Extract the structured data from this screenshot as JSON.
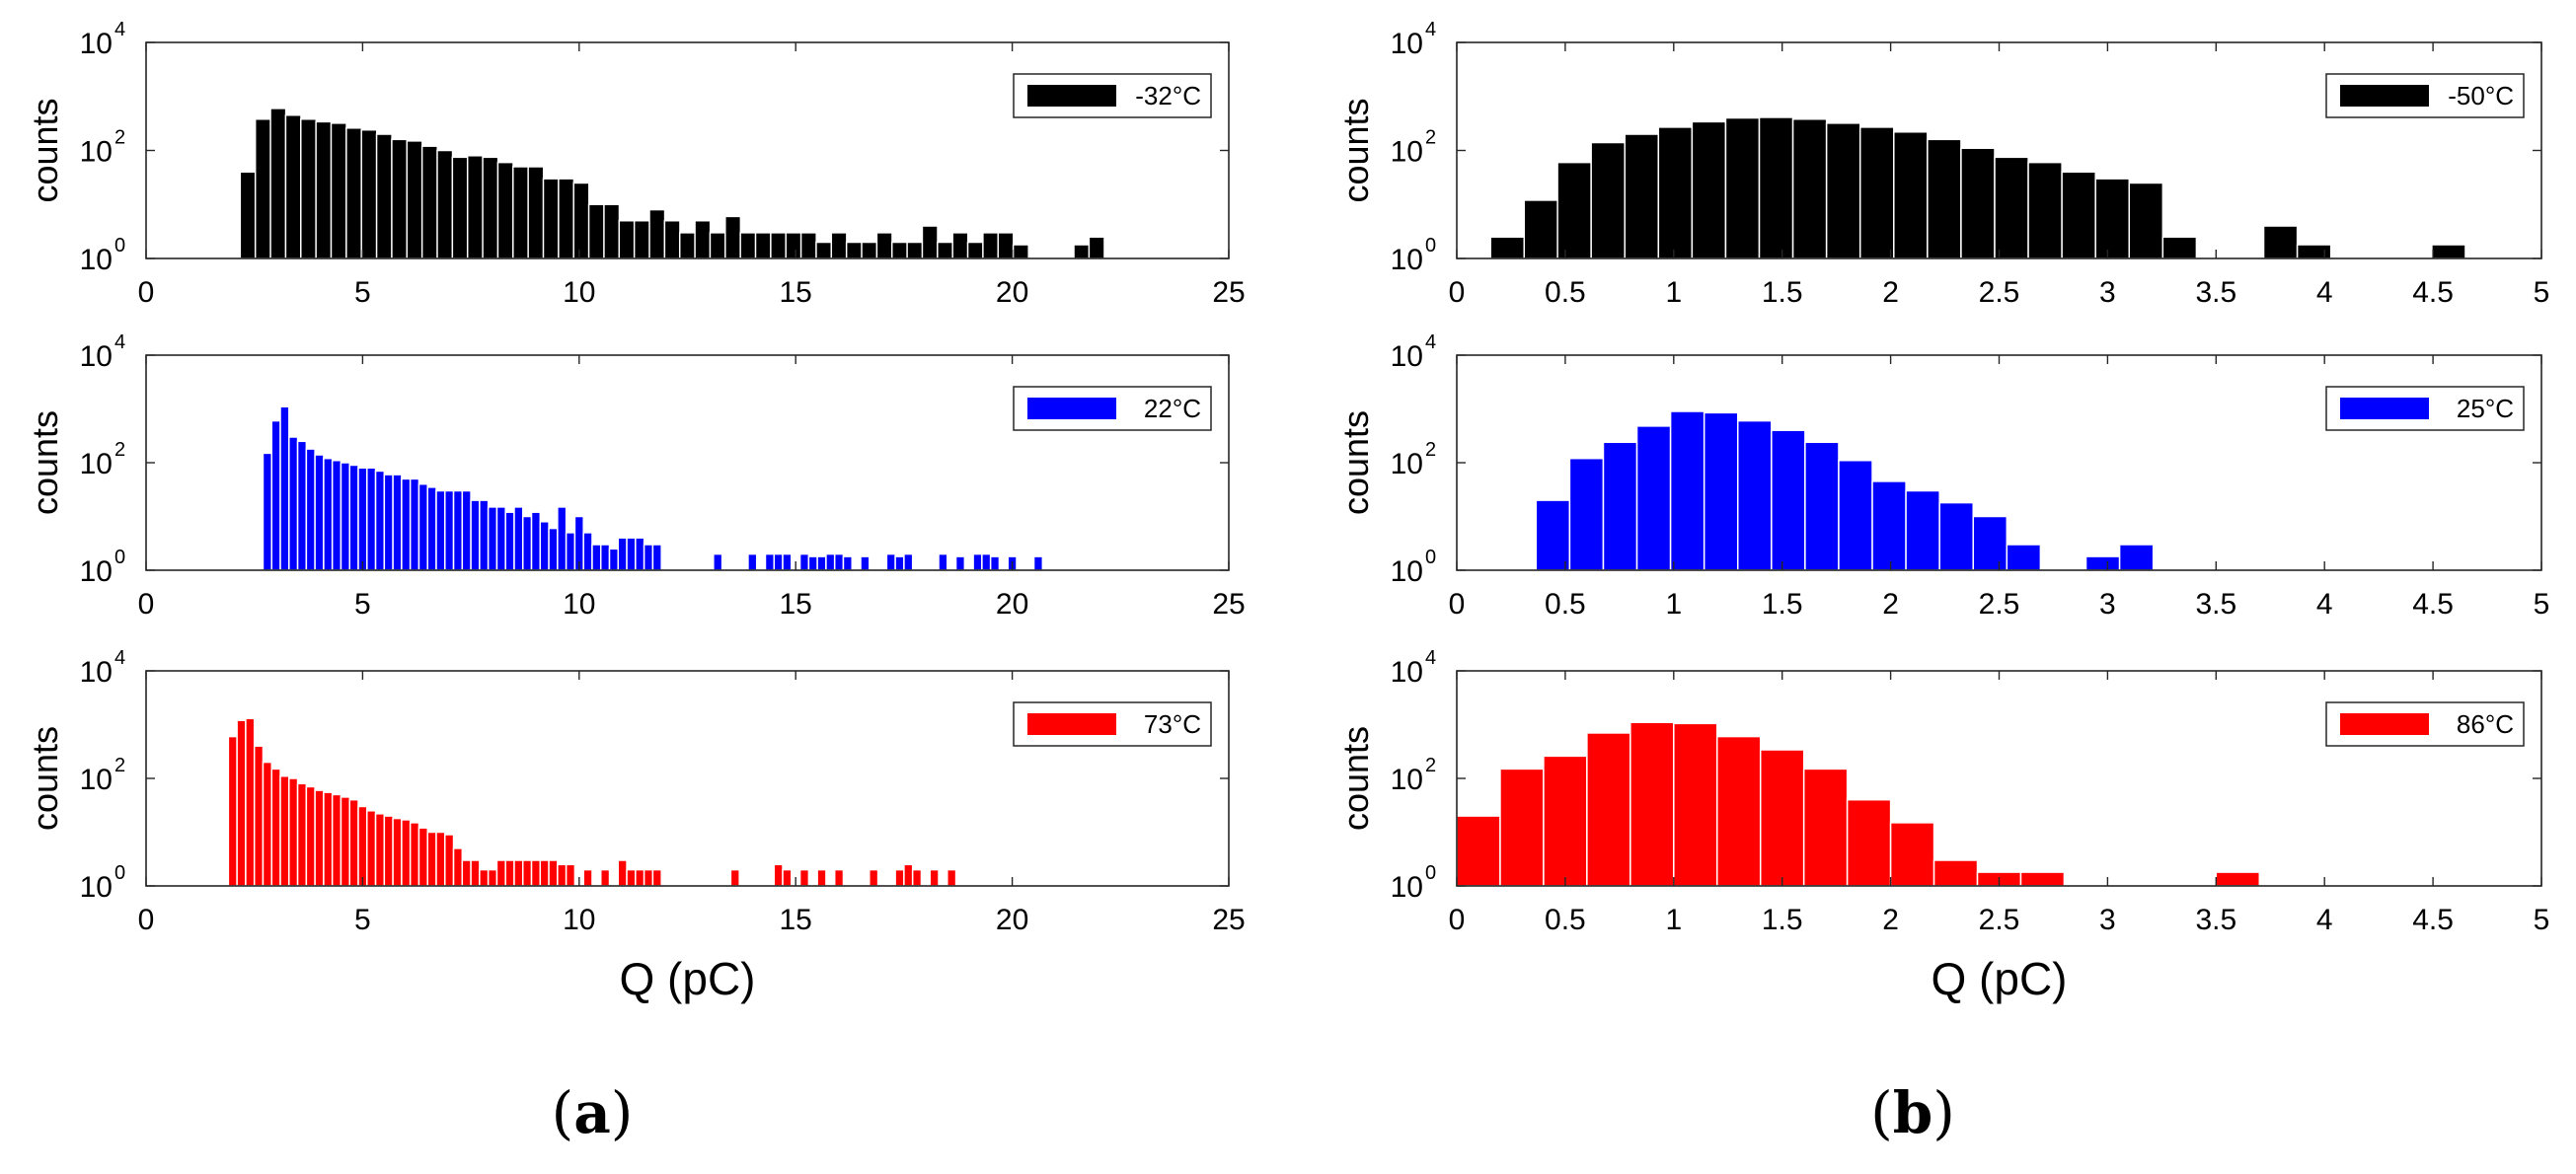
{
  "figure": {
    "panel_labels": [
      {
        "open": "(",
        "letter": "a",
        "close": ")"
      },
      {
        "open": "(",
        "letter": "b",
        "close": ")"
      }
    ]
  },
  "chart_data": [
    {
      "type": "bar",
      "yscale": "log",
      "xlim": [
        0,
        25
      ],
      "ylim": [
        1,
        10000
      ],
      "xticks": [
        0,
        5,
        10,
        15,
        20,
        25
      ],
      "xtick_labels": [
        "0",
        "5",
        "10",
        "15",
        "20",
        "25"
      ],
      "ytick_labels": [
        {
          "base": "10",
          "exp": "0"
        },
        {
          "base": "10",
          "exp": "2"
        },
        {
          "base": "10",
          "exp": "4"
        }
      ],
      "ylabel": "counts",
      "xlabel": "",
      "legend": "-32°C",
      "color": "#000000",
      "bin_width": 0.355,
      "x": [
        2.35,
        2.7,
        3.05,
        3.4,
        3.75,
        4.1,
        4.45,
        4.8,
        5.15,
        5.5,
        5.85,
        6.2,
        6.55,
        6.9,
        7.25,
        7.6,
        7.95,
        8.3,
        8.65,
        9.0,
        9.35,
        9.7,
        10.05,
        10.4,
        10.75,
        11.1,
        11.45,
        11.8,
        12.15,
        12.5,
        12.85,
        13.2,
        13.55,
        13.9,
        14.25,
        14.6,
        14.95,
        15.3,
        15.65,
        16.0,
        16.35,
        16.7,
        17.05,
        17.4,
        17.75,
        18.1,
        18.45,
        18.8,
        19.15,
        19.5,
        19.85,
        20.2,
        21.6,
        21.95
      ],
      "values": [
        40,
        380,
        600,
        450,
        380,
        340,
        320,
        260,
        240,
        200,
        160,
        150,
        120,
        100,
        75,
        80,
        75,
        60,
        50,
        50,
        30,
        30,
        25,
        10,
        10,
        5,
        5,
        8,
        5,
        3,
        5,
        3,
        6,
        3,
        3,
        3,
        3,
        3,
        2,
        3,
        2,
        2,
        3,
        2,
        2,
        4,
        2,
        3,
        2,
        3,
        3,
        1.8,
        1.8,
        2.5
      ]
    },
    {
      "type": "bar",
      "yscale": "log",
      "xlim": [
        0,
        25
      ],
      "ylim": [
        1,
        10000
      ],
      "xticks": [
        0,
        5,
        10,
        15,
        20,
        25
      ],
      "xtick_labels": [
        "0",
        "5",
        "10",
        "15",
        "20",
        "25"
      ],
      "ytick_labels": [
        {
          "base": "10",
          "exp": "0"
        },
        {
          "base": "10",
          "exp": "2"
        },
        {
          "base": "10",
          "exp": "4"
        }
      ],
      "ylabel": "counts",
      "xlabel": "",
      "legend": "22°C",
      "color": "#0000ff",
      "bin_width": 0.2,
      "x": [
        2.8,
        3.0,
        3.2,
        3.4,
        3.6,
        3.8,
        4.0,
        4.2,
        4.4,
        4.6,
        4.8,
        5.0,
        5.2,
        5.4,
        5.6,
        5.8,
        6.0,
        6.2,
        6.4,
        6.6,
        6.8,
        7.0,
        7.2,
        7.4,
        7.6,
        7.8,
        8.0,
        8.2,
        8.4,
        8.6,
        8.8,
        9.0,
        9.2,
        9.4,
        9.6,
        9.8,
        10.0,
        10.2,
        10.4,
        10.6,
        10.8,
        11.0,
        11.2,
        11.4,
        11.6,
        11.8,
        13.2,
        14.0,
        14.4,
        14.6,
        14.8,
        15.2,
        15.4,
        15.6,
        15.8,
        16.0,
        16.2,
        16.6,
        17.2,
        17.4,
        17.6,
        18.4,
        18.8,
        19.2,
        19.4,
        19.6,
        20.0,
        20.6
      ],
      "values": [
        150,
        600,
        1100,
        300,
        250,
        180,
        140,
        120,
        110,
        100,
        90,
        80,
        80,
        70,
        60,
        60,
        50,
        50,
        40,
        35,
        30,
        30,
        30,
        30,
        20,
        20,
        15,
        15,
        12,
        15,
        10,
        12,
        8,
        6,
        15,
        5,
        10,
        5,
        3,
        3,
        2.5,
        4,
        4,
        4,
        3,
        3,
        2,
        2,
        2,
        2,
        2,
        2,
        1.8,
        1.8,
        2,
        2,
        1.8,
        1.8,
        2,
        1.8,
        2,
        2,
        1.8,
        2,
        2,
        1.8,
        1.8,
        1.8
      ]
    },
    {
      "type": "bar",
      "yscale": "log",
      "xlim": [
        0,
        25
      ],
      "ylim": [
        1,
        10000
      ],
      "xticks": [
        0,
        5,
        10,
        15,
        20,
        25
      ],
      "xtick_labels": [
        "0",
        "5",
        "10",
        "15",
        "20",
        "25"
      ],
      "ytick_labels": [
        {
          "base": "10",
          "exp": "0"
        },
        {
          "base": "10",
          "exp": "2"
        },
        {
          "base": "10",
          "exp": "4"
        }
      ],
      "ylabel": "counts",
      "xlabel": "Q (pC)",
      "legend": "73°C",
      "color": "#ff0000",
      "bin_width": 0.2,
      "x": [
        2.0,
        2.2,
        2.4,
        2.6,
        2.8,
        3.0,
        3.2,
        3.4,
        3.6,
        3.8,
        4.0,
        4.2,
        4.4,
        4.6,
        4.8,
        5.0,
        5.2,
        5.4,
        5.6,
        5.8,
        6.0,
        6.2,
        6.4,
        6.6,
        6.8,
        7.0,
        7.2,
        7.4,
        7.6,
        7.8,
        8.0,
        8.2,
        8.4,
        8.6,
        8.8,
        9.0,
        9.2,
        9.4,
        9.6,
        9.8,
        10.2,
        10.6,
        11.0,
        11.2,
        11.4,
        11.6,
        11.8,
        13.6,
        14.6,
        14.8,
        15.2,
        15.6,
        16.0,
        16.8,
        17.4,
        17.6,
        17.8,
        18.2,
        18.6
      ],
      "values": [
        600,
        1200,
        1300,
        400,
        200,
        150,
        110,
        100,
        80,
        70,
        60,
        55,
        50,
        45,
        40,
        30,
        25,
        22,
        20,
        18,
        17,
        15,
        12,
        10,
        10,
        9,
        5,
        3,
        3,
        2,
        2,
        3,
        3,
        3,
        3,
        3,
        3,
        3,
        2.5,
        2.5,
        2,
        2,
        3,
        2,
        2,
        2,
        2,
        2,
        2.5,
        2,
        2,
        2,
        2,
        2,
        2,
        2.5,
        2,
        2,
        2
      ]
    },
    {
      "type": "bar",
      "yscale": "log",
      "xlim": [
        0,
        5
      ],
      "ylim": [
        1,
        10000
      ],
      "xticks": [
        0,
        0.5,
        1,
        1.5,
        2,
        2.5,
        3,
        3.5,
        4,
        4.5,
        5
      ],
      "xtick_labels": [
        "0",
        "0.5",
        "1",
        "1.5",
        "2",
        "2.5",
        "3",
        "3.5",
        "4",
        "4.5",
        "5"
      ],
      "ytick_labels": [
        {
          "base": "10",
          "exp": "0"
        },
        {
          "base": "10",
          "exp": "2"
        },
        {
          "base": "10",
          "exp": "4"
        }
      ],
      "ylabel": "counts",
      "xlabel": "",
      "legend": "-50°C",
      "color": "#000000",
      "bin_width": 0.155,
      "x": [
        0.233,
        0.388,
        0.542,
        0.697,
        0.852,
        1.007,
        1.162,
        1.317,
        1.472,
        1.627,
        1.782,
        1.937,
        2.092,
        2.247,
        2.402,
        2.557,
        2.712,
        2.867,
        3.022,
        3.177,
        3.332,
        3.797,
        3.952,
        4.572
      ],
      "values": [
        2.5,
        12,
        60,
        140,
        200,
        270,
        340,
        400,
        410,
        380,
        320,
        270,
        220,
        160,
        110,
        75,
        60,
        40,
        30,
        25,
        2.5,
        4,
        1.8,
        1.8
      ]
    },
    {
      "type": "bar",
      "yscale": "log",
      "xlim": [
        0,
        5
      ],
      "ylim": [
        1,
        10000
      ],
      "xticks": [
        0,
        0.5,
        1,
        1.5,
        2,
        2.5,
        3,
        3.5,
        4,
        4.5,
        5
      ],
      "xtick_labels": [
        "0",
        "0.5",
        "1",
        "1.5",
        "2",
        "2.5",
        "3",
        "3.5",
        "4",
        "4.5",
        "5"
      ],
      "ytick_labels": [
        {
          "base": "10",
          "exp": "0"
        },
        {
          "base": "10",
          "exp": "2"
        },
        {
          "base": "10",
          "exp": "4"
        }
      ],
      "ylabel": "counts",
      "xlabel": "",
      "legend": "25°C",
      "color": "#0000ff",
      "bin_width": 0.155,
      "x": [
        0.443,
        0.598,
        0.753,
        0.908,
        1.063,
        1.218,
        1.373,
        1.528,
        1.683,
        1.838,
        1.993,
        2.148,
        2.303,
        2.458,
        2.613,
        2.978,
        3.133
      ],
      "values": [
        20,
        120,
        240,
        480,
        900,
        850,
        600,
        400,
        240,
        110,
        45,
        30,
        18,
        10,
        3,
        1.8,
        3
      ]
    },
    {
      "type": "bar",
      "yscale": "log",
      "xlim": [
        0,
        5
      ],
      "ylim": [
        1,
        10000
      ],
      "xticks": [
        0,
        0.5,
        1,
        1.5,
        2,
        2.5,
        3,
        3.5,
        4,
        4.5,
        5
      ],
      "xtick_labels": [
        "0",
        "0.5",
        "1",
        "1.5",
        "2",
        "2.5",
        "3",
        "3.5",
        "4",
        "4.5",
        "5"
      ],
      "ytick_labels": [
        {
          "base": "10",
          "exp": "0"
        },
        {
          "base": "10",
          "exp": "2"
        },
        {
          "base": "10",
          "exp": "4"
        }
      ],
      "ylabel": "counts",
      "xlabel": "Q (pC)",
      "legend": "86°C",
      "color": "#ff0000",
      "bin_width": 0.2,
      "x": [
        0.1,
        0.3,
        0.5,
        0.7,
        0.9,
        1.1,
        1.3,
        1.5,
        1.7,
        1.9,
        2.1,
        2.3,
        2.5,
        2.7,
        3.6
      ],
      "values": [
        20,
        150,
        260,
        700,
        1100,
        1050,
        600,
        340,
        150,
        40,
        15,
        3,
        1.8,
        1.8,
        1.8
      ]
    }
  ]
}
